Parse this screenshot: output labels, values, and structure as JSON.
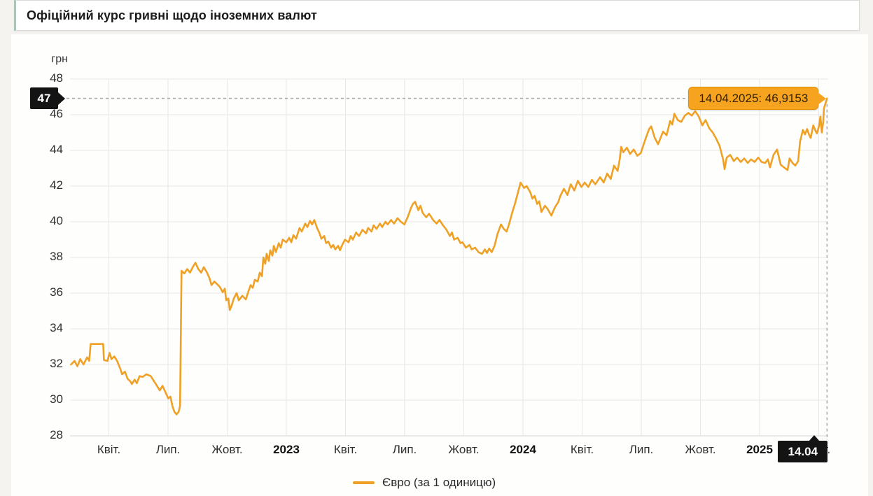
{
  "header": {
    "title": "Офіційний курс гривні щодо іноземних валют"
  },
  "chart": {
    "unit_label": "грн",
    "marker": {
      "y_axis_badge": "47",
      "x_axis_badge": "14.04",
      "tooltip_label": "14.04.2025: 46,9153"
    },
    "legend": {
      "series_label": "Євро (за 1 одиницю)",
      "swatch_color": "#efa125"
    },
    "colors": {
      "line": "#efa125",
      "tooltip_bg": "#f6a41f",
      "tooltip_border": "#e18f04",
      "badge_bg": "#141414",
      "grid": "#e7e7e7",
      "grid_bottom": "#d4d4d4",
      "crosshair": "#a6a6a6",
      "title_accent": "#a9c7b9"
    }
  },
  "chart_data": {
    "type": "line",
    "title": "Офіційний курс гривні щодо іноземних валют",
    "xlabel": "",
    "ylabel": "грн",
    "ylim": [
      28,
      48
    ],
    "x_range": [
      2022.086,
      2025.285
    ],
    "grid": true,
    "legend_position": "bottom",
    "y_ticks": [
      28,
      30,
      32,
      34,
      36,
      38,
      40,
      42,
      44,
      46,
      48
    ],
    "x_ticks": [
      {
        "t": 2022.25,
        "label": "Квіт."
      },
      {
        "t": 2022.5,
        "label": "Лип."
      },
      {
        "t": 2022.75,
        "label": "Жовт."
      },
      {
        "t": 2023,
        "label": "2023",
        "bold": true
      },
      {
        "t": 2023.25,
        "label": "Квіт."
      },
      {
        "t": 2023.5,
        "label": "Лип."
      },
      {
        "t": 2023.75,
        "label": "Жовт."
      },
      {
        "t": 2024,
        "label": "2024",
        "bold": true
      },
      {
        "t": 2024.25,
        "label": "Квіт."
      },
      {
        "t": 2024.5,
        "label": "Лип."
      },
      {
        "t": 2024.75,
        "label": "Жовт."
      },
      {
        "t": 2025,
        "label": "2025",
        "bold": true
      },
      {
        "t": 2025.25,
        "label": "Квіт."
      }
    ],
    "highlight": {
      "date": "14.04.2025",
      "value": 46.9153,
      "display": "14.04.2025: 46,9153",
      "y_axis_rounded": "47",
      "x_axis_label": "14.04"
    },
    "series": [
      {
        "name": "Євро (за 1 одиницю)",
        "color": "#efa125",
        "x_unit": "decimal_year",
        "points": [
          [
            2022.09,
            32.0
          ],
          [
            2022.105,
            32.2
          ],
          [
            2022.117,
            31.9
          ],
          [
            2022.129,
            32.3
          ],
          [
            2022.143,
            32.0
          ],
          [
            2022.158,
            32.4
          ],
          [
            2022.167,
            32.2
          ],
          [
            2022.173,
            33.15
          ],
          [
            2022.226,
            33.15
          ],
          [
            2022.229,
            32.25
          ],
          [
            2022.244,
            32.2
          ],
          [
            2022.253,
            32.65
          ],
          [
            2022.261,
            32.3
          ],
          [
            2022.273,
            32.45
          ],
          [
            2022.285,
            32.2
          ],
          [
            2022.297,
            31.8
          ],
          [
            2022.306,
            31.45
          ],
          [
            2022.318,
            31.6
          ],
          [
            2022.329,
            31.2
          ],
          [
            2022.341,
            31.05
          ],
          [
            2022.347,
            30.9
          ],
          [
            2022.359,
            31.15
          ],
          [
            2022.368,
            30.95
          ],
          [
            2022.38,
            31.35
          ],
          [
            2022.392,
            31.3
          ],
          [
            2022.409,
            31.45
          ],
          [
            2022.427,
            31.35
          ],
          [
            2022.439,
            31.1
          ],
          [
            2022.451,
            30.85
          ],
          [
            2022.465,
            30.55
          ],
          [
            2022.477,
            30.8
          ],
          [
            2022.489,
            30.45
          ],
          [
            2022.501,
            30.1
          ],
          [
            2022.51,
            30.2
          ],
          [
            2022.519,
            29.65
          ],
          [
            2022.527,
            29.35
          ],
          [
            2022.536,
            29.2
          ],
          [
            2022.545,
            29.35
          ],
          [
            2022.551,
            29.7
          ],
          [
            2022.557,
            37.25
          ],
          [
            2022.569,
            37.1
          ],
          [
            2022.581,
            37.35
          ],
          [
            2022.593,
            37.15
          ],
          [
            2022.604,
            37.45
          ],
          [
            2022.616,
            37.7
          ],
          [
            2022.628,
            37.35
          ],
          [
            2022.64,
            37.15
          ],
          [
            2022.651,
            37.45
          ],
          [
            2022.663,
            37.2
          ],
          [
            2022.675,
            36.85
          ],
          [
            2022.684,
            36.45
          ],
          [
            2022.696,
            36.65
          ],
          [
            2022.708,
            36.5
          ],
          [
            2022.719,
            36.35
          ],
          [
            2022.731,
            36.05
          ],
          [
            2022.74,
            36.25
          ],
          [
            2022.746,
            35.6
          ],
          [
            2022.755,
            35.7
          ],
          [
            2022.761,
            35.05
          ],
          [
            2022.77,
            35.35
          ],
          [
            2022.778,
            35.7
          ],
          [
            2022.79,
            36.0
          ],
          [
            2022.799,
            35.6
          ],
          [
            2022.814,
            35.85
          ],
          [
            2022.829,
            35.65
          ],
          [
            2022.84,
            36.1
          ],
          [
            2022.849,
            36.45
          ],
          [
            2022.858,
            36.3
          ],
          [
            2022.867,
            36.75
          ],
          [
            2022.879,
            36.65
          ],
          [
            2022.888,
            37.15
          ],
          [
            2022.897,
            36.95
          ],
          [
            2022.903,
            38.0
          ],
          [
            2022.911,
            37.65
          ],
          [
            2022.917,
            38.2
          ],
          [
            2022.926,
            37.8
          ],
          [
            2022.932,
            38.4
          ],
          [
            2022.941,
            38.1
          ],
          [
            2022.947,
            38.65
          ],
          [
            2022.956,
            38.3
          ],
          [
            2022.968,
            38.8
          ],
          [
            2022.976,
            38.55
          ],
          [
            2022.985,
            39.0
          ],
          [
            2023.0,
            38.85
          ],
          [
            2023.012,
            39.1
          ],
          [
            2023.021,
            38.85
          ],
          [
            2023.03,
            39.25
          ],
          [
            2023.041,
            39.05
          ],
          [
            2023.056,
            39.65
          ],
          [
            2023.065,
            39.45
          ],
          [
            2023.08,
            39.9
          ],
          [
            2023.089,
            39.7
          ],
          [
            2023.1,
            40.05
          ],
          [
            2023.109,
            39.85
          ],
          [
            2023.118,
            40.1
          ],
          [
            2023.13,
            39.65
          ],
          [
            2023.139,
            39.4
          ],
          [
            2023.148,
            39.05
          ],
          [
            2023.16,
            39.2
          ],
          [
            2023.168,
            38.8
          ],
          [
            2023.177,
            38.9
          ],
          [
            2023.189,
            38.55
          ],
          [
            2023.198,
            38.7
          ],
          [
            2023.207,
            38.45
          ],
          [
            2023.219,
            38.65
          ],
          [
            2023.227,
            38.4
          ],
          [
            2023.236,
            38.7
          ],
          [
            2023.248,
            39.0
          ],
          [
            2023.263,
            38.85
          ],
          [
            2023.272,
            39.2
          ],
          [
            2023.281,
            39.0
          ],
          [
            2023.295,
            39.4
          ],
          [
            2023.307,
            39.2
          ],
          [
            2023.322,
            39.55
          ],
          [
            2023.337,
            39.35
          ],
          [
            2023.346,
            39.65
          ],
          [
            2023.36,
            39.45
          ],
          [
            2023.369,
            39.8
          ],
          [
            2023.381,
            39.6
          ],
          [
            2023.396,
            39.9
          ],
          [
            2023.405,
            39.7
          ],
          [
            2023.419,
            40.0
          ],
          [
            2023.428,
            39.85
          ],
          [
            2023.443,
            40.1
          ],
          [
            2023.455,
            39.9
          ],
          [
            2023.47,
            40.2
          ],
          [
            2023.484,
            40.0
          ],
          [
            2023.499,
            39.85
          ],
          [
            2023.514,
            40.3
          ],
          [
            2023.526,
            40.75
          ],
          [
            2023.535,
            41.0
          ],
          [
            2023.544,
            41.12
          ],
          [
            2023.558,
            40.65
          ],
          [
            2023.567,
            40.9
          ],
          [
            2023.576,
            40.5
          ],
          [
            2023.591,
            40.25
          ],
          [
            2023.603,
            40.45
          ],
          [
            2023.611,
            40.3
          ],
          [
            2023.62,
            40.1
          ],
          [
            2023.635,
            39.9
          ],
          [
            2023.647,
            40.1
          ],
          [
            2023.662,
            39.8
          ],
          [
            2023.677,
            39.55
          ],
          [
            2023.691,
            39.2
          ],
          [
            2023.7,
            39.4
          ],
          [
            2023.709,
            39.0
          ],
          [
            2023.724,
            39.1
          ],
          [
            2023.736,
            38.8
          ],
          [
            2023.744,
            38.85
          ],
          [
            2023.759,
            38.55
          ],
          [
            2023.774,
            38.7
          ],
          [
            2023.783,
            38.45
          ],
          [
            2023.798,
            38.55
          ],
          [
            2023.812,
            38.3
          ],
          [
            2023.827,
            38.2
          ],
          [
            2023.839,
            38.45
          ],
          [
            2023.848,
            38.25
          ],
          [
            2023.857,
            38.5
          ],
          [
            2023.868,
            38.3
          ],
          [
            2023.88,
            38.65
          ],
          [
            2023.892,
            39.3
          ],
          [
            2023.907,
            39.85
          ],
          [
            2023.919,
            39.6
          ],
          [
            2023.931,
            39.45
          ],
          [
            2023.942,
            39.9
          ],
          [
            2023.954,
            40.5
          ],
          [
            2023.966,
            41.0
          ],
          [
            2023.978,
            41.6
          ],
          [
            2023.99,
            42.2
          ],
          [
            2024.004,
            41.9
          ],
          [
            2024.016,
            42.0
          ],
          [
            2024.031,
            41.65
          ],
          [
            2024.04,
            41.3
          ],
          [
            2024.049,
            41.45
          ],
          [
            2024.06,
            41.0
          ],
          [
            2024.069,
            41.15
          ],
          [
            2024.078,
            40.55
          ],
          [
            2024.093,
            40.9
          ],
          [
            2024.105,
            40.7
          ],
          [
            2024.12,
            40.35
          ],
          [
            2024.128,
            40.6
          ],
          [
            2024.137,
            40.85
          ],
          [
            2024.149,
            41.1
          ],
          [
            2024.158,
            41.45
          ],
          [
            2024.173,
            41.85
          ],
          [
            2024.188,
            41.5
          ],
          [
            2024.202,
            42.1
          ],
          [
            2024.217,
            41.75
          ],
          [
            2024.232,
            42.3
          ],
          [
            2024.247,
            41.95
          ],
          [
            2024.261,
            42.2
          ],
          [
            2024.276,
            41.95
          ],
          [
            2024.291,
            42.35
          ],
          [
            2024.306,
            42.1
          ],
          [
            2024.326,
            42.5
          ],
          [
            2024.341,
            42.2
          ],
          [
            2024.356,
            42.7
          ],
          [
            2024.371,
            42.4
          ],
          [
            2024.385,
            43.15
          ],
          [
            2024.4,
            42.85
          ],
          [
            2024.409,
            43.5
          ],
          [
            2024.415,
            44.2
          ],
          [
            2024.424,
            43.9
          ],
          [
            2024.439,
            44.15
          ],
          [
            2024.453,
            43.8
          ],
          [
            2024.468,
            44.05
          ],
          [
            2024.483,
            43.7
          ],
          [
            2024.498,
            43.85
          ],
          [
            2024.518,
            44.65
          ],
          [
            2024.533,
            45.2
          ],
          [
            2024.542,
            45.35
          ],
          [
            2024.557,
            44.7
          ],
          [
            2024.571,
            44.35
          ],
          [
            2024.592,
            45.05
          ],
          [
            2024.607,
            44.85
          ],
          [
            2024.622,
            45.65
          ],
          [
            2024.631,
            45.45
          ],
          [
            2024.64,
            46.05
          ],
          [
            2024.654,
            45.7
          ],
          [
            2024.669,
            45.6
          ],
          [
            2024.684,
            45.95
          ],
          [
            2024.699,
            46.1
          ],
          [
            2024.713,
            45.95
          ],
          [
            2024.728,
            46.2
          ],
          [
            2024.743,
            45.9
          ],
          [
            2024.758,
            45.4
          ],
          [
            2024.772,
            45.7
          ],
          [
            2024.787,
            45.25
          ],
          [
            2024.802,
            45.0
          ],
          [
            2024.817,
            44.65
          ],
          [
            2024.831,
            44.25
          ],
          [
            2024.846,
            43.5
          ],
          [
            2024.852,
            42.95
          ],
          [
            2024.861,
            43.6
          ],
          [
            2024.876,
            43.75
          ],
          [
            2024.891,
            43.4
          ],
          [
            2024.905,
            43.6
          ],
          [
            2024.92,
            43.35
          ],
          [
            2024.935,
            43.55
          ],
          [
            2024.95,
            43.3
          ],
          [
            2024.964,
            43.5
          ],
          [
            2024.979,
            43.35
          ],
          [
            2024.994,
            43.6
          ],
          [
            2025.009,
            43.35
          ],
          [
            2025.024,
            43.3
          ],
          [
            2025.035,
            43.5
          ],
          [
            2025.044,
            43.05
          ],
          [
            2025.059,
            43.75
          ],
          [
            2025.074,
            44.05
          ],
          [
            2025.089,
            43.2
          ],
          [
            2025.103,
            43.05
          ],
          [
            2025.118,
            42.9
          ],
          [
            2025.127,
            43.55
          ],
          [
            2025.139,
            43.3
          ],
          [
            2025.151,
            43.15
          ],
          [
            2025.163,
            43.4
          ],
          [
            2025.171,
            44.5
          ],
          [
            2025.183,
            45.15
          ],
          [
            2025.192,
            44.9
          ],
          [
            2025.201,
            45.2
          ],
          [
            2025.21,
            44.85
          ],
          [
            2025.216,
            44.7
          ],
          [
            2025.227,
            45.4
          ],
          [
            2025.236,
            45.1
          ],
          [
            2025.242,
            44.95
          ],
          [
            2025.251,
            45.35
          ],
          [
            2025.257,
            45.9
          ],
          [
            2025.263,
            45.0
          ],
          [
            2025.269,
            45.6
          ],
          [
            2025.272,
            46.35
          ],
          [
            2025.285,
            46.9153
          ]
        ]
      }
    ]
  }
}
